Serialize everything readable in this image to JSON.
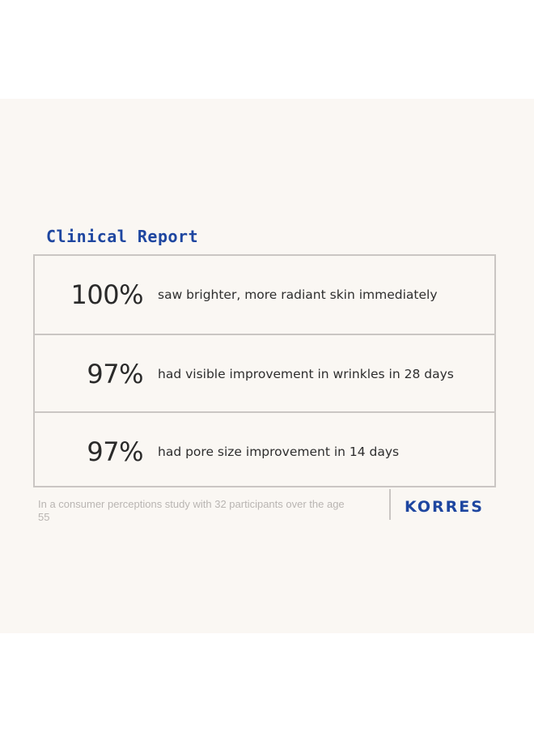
{
  "report": {
    "title": "Clinical Report",
    "stats": [
      {
        "value": "100%",
        "text": "saw brighter, more radiant skin immediately"
      },
      {
        "value": "97%",
        "text": "had visible improvement in wrinkles in 28 days"
      },
      {
        "value": "97%",
        "text": "had pore size improvement in 14 days"
      }
    ],
    "footnote": "In a consumer perceptions study with 32 participants over the age 55"
  },
  "brand": {
    "name": "KORRES"
  },
  "colors": {
    "accent": "#1e46a0",
    "background": "#faf7f3",
    "border": "#cac6c3",
    "text": "#2a2a2a",
    "footnote": "#b9b5b2"
  }
}
